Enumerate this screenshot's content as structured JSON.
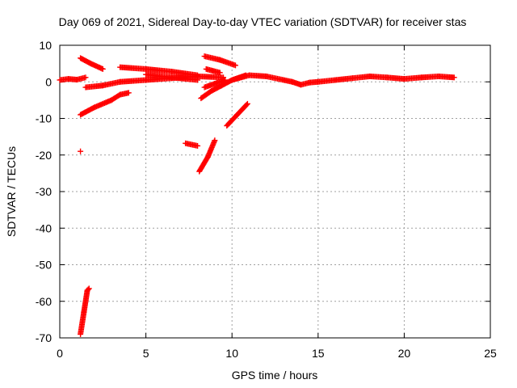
{
  "chart_data": {
    "type": "scatter",
    "title": "Day 069 of 2021, Sidereal Day-to-day VTEC variation (SDTVAR) for receiver stas",
    "xlabel": "GPS time / hours",
    "ylabel": "SDTVAR / TECUs",
    "xlim": [
      0,
      25
    ],
    "ylim": [
      -70,
      10
    ],
    "xticks": [
      0,
      5,
      10,
      15,
      20,
      25
    ],
    "yticks": [
      10,
      0,
      -10,
      -20,
      -30,
      -40,
      -50,
      -60,
      -70
    ],
    "grid": true,
    "marker": "plus",
    "color": "#ff0000",
    "series": [
      {
        "name": "SDTVAR",
        "segments": [
          [
            [
              0.0,
              0.5
            ],
            [
              0.5,
              0.8
            ],
            [
              1.0,
              0.6
            ],
            [
              1.5,
              1.2
            ]
          ],
          [
            [
              1.2,
              -9.0
            ],
            [
              2.0,
              -7.0
            ],
            [
              3.0,
              -5.0
            ],
            [
              3.5,
              -3.5
            ],
            [
              4.0,
              -3.0
            ]
          ],
          [
            [
              1.2,
              6.5
            ],
            [
              1.8,
              5.0
            ],
            [
              2.5,
              3.5
            ]
          ],
          [
            [
              1.5,
              -1.5
            ],
            [
              2.5,
              -1.0
            ],
            [
              3.5,
              0.0
            ],
            [
              5.0,
              0.5
            ],
            [
              6.5,
              1.0
            ],
            [
              8.0,
              1.5
            ],
            [
              9.5,
              1.2
            ]
          ],
          [
            [
              3.5,
              4.0
            ],
            [
              5.0,
              3.5
            ],
            [
              6.5,
              2.8
            ],
            [
              8.0,
              1.8
            ]
          ],
          [
            [
              5.0,
              2.0
            ],
            [
              6.5,
              1.2
            ],
            [
              8.0,
              0.5
            ]
          ],
          [
            [
              8.4,
              7.0
            ],
            [
              9.3,
              6.0
            ],
            [
              10.2,
              4.5
            ]
          ],
          [
            [
              8.5,
              3.5
            ],
            [
              9.3,
              2.5
            ]
          ],
          [
            [
              8.2,
              -4.5
            ],
            [
              8.8,
              -2.5
            ],
            [
              9.4,
              -1.0
            ],
            [
              10.0,
              0.5
            ],
            [
              10.8,
              1.8
            ]
          ],
          [
            [
              8.4,
              -1.5
            ],
            [
              9.0,
              -0.5
            ],
            [
              9.6,
              0.5
            ]
          ],
          [
            [
              7.3,
              -16.8
            ],
            [
              8.0,
              -17.5
            ]
          ],
          [
            [
              8.1,
              -24.5
            ],
            [
              8.6,
              -20.5
            ],
            [
              9.0,
              -16.0
            ]
          ],
          [
            [
              9.7,
              -12.0
            ],
            [
              10.3,
              -9.0
            ],
            [
              10.9,
              -6.0
            ]
          ],
          [
            [
              10.0,
              0.5
            ],
            [
              11.0,
              1.8
            ],
            [
              12.0,
              1.5
            ],
            [
              13.0,
              0.5
            ],
            [
              13.5,
              0.0
            ],
            [
              14.0,
              -0.8
            ],
            [
              14.5,
              -0.2
            ],
            [
              15.0,
              0.0
            ],
            [
              16.0,
              0.5
            ],
            [
              17.0,
              1.0
            ],
            [
              18.0,
              1.5
            ],
            [
              19.0,
              1.2
            ],
            [
              20.0,
              0.8
            ],
            [
              21.0,
              1.2
            ],
            [
              22.0,
              1.5
            ],
            [
              22.9,
              1.2
            ]
          ],
          [
            [
              1.2,
              -69.0
            ],
            [
              1.4,
              -63.0
            ],
            [
              1.6,
              -57.0
            ],
            [
              1.7,
              -56.5
            ]
          ]
        ],
        "points": [
          [
            1.2,
            -19.0
          ]
        ]
      }
    ]
  }
}
